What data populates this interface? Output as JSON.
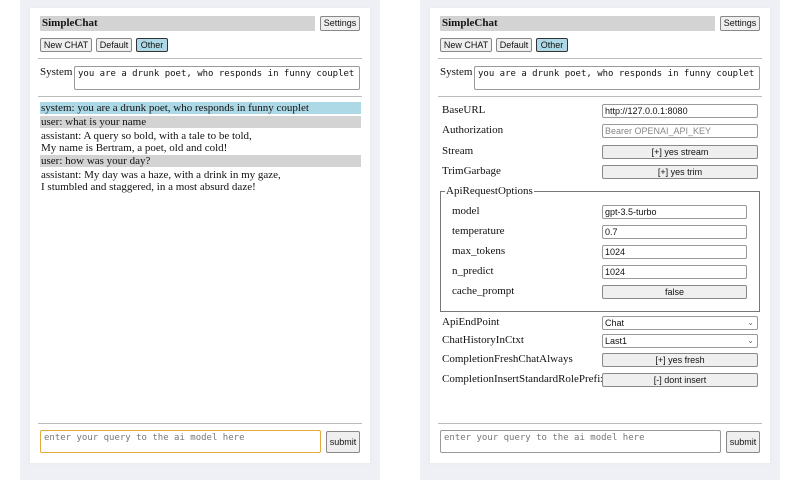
{
  "app_title": "SimpleChat",
  "settings_label": "Settings",
  "chat_buttons": [
    "New CHAT",
    "Default",
    "Other"
  ],
  "system_label": "System",
  "system_prompt": "you are a drunk poet, who responds in funny couplet",
  "messages": [
    {
      "role": "system",
      "text": "system: you are a drunk poet, who responds in funny couplet",
      "color": "#add8e6"
    },
    {
      "role": "user",
      "text": "user: what is your name",
      "color": "#d3d3d3"
    },
    {
      "role": "assistant",
      "lines": [
        "assistant: A query so bold, with a tale to be told,",
        "My name is Bertram, a poet, old and cold!"
      ]
    },
    {
      "role": "user",
      "text": "user: how was your day?",
      "color": "#d3d3d3"
    },
    {
      "role": "assistant",
      "lines": [
        "assistant: My day was a haze, with a drink in my gaze,",
        "I stumbled and staggered, in a most absurd daze!"
      ]
    }
  ],
  "query_placeholder": "enter your query to the ai model here",
  "submit_label": "submit",
  "settings": {
    "base_url": {
      "label": "BaseURL",
      "value": "http://127.0.0.1:8080"
    },
    "authorization": {
      "label": "Authorization",
      "placeholder": "Bearer OPENAI_API_KEY"
    },
    "stream": {
      "label": "Stream",
      "value": "[+] yes stream"
    },
    "trim": {
      "label": "TrimGarbage",
      "value": "[+] yes trim"
    },
    "api_options": {
      "legend": "ApiRequestOptions",
      "model": {
        "label": "model",
        "value": "gpt-3.5-turbo"
      },
      "temperature": {
        "label": "temperature",
        "value": "0.7"
      },
      "max_tokens": {
        "label": "max_tokens",
        "value": "1024"
      },
      "n_predict": {
        "label": "n_predict",
        "value": "1024"
      },
      "cache_prompt": {
        "label": "cache_prompt",
        "value": "false"
      }
    },
    "endpoint": {
      "label": "ApiEndPoint",
      "value": "Chat"
    },
    "history": {
      "label": "ChatHistoryInCtxt",
      "value": "Last1"
    },
    "fresh": {
      "label": "CompletionFreshChatAlways",
      "value": "[+] yes fresh"
    },
    "prefix": {
      "label": "CompletionInsertStandardRolePrefix",
      "value": "[-] dont insert"
    }
  }
}
